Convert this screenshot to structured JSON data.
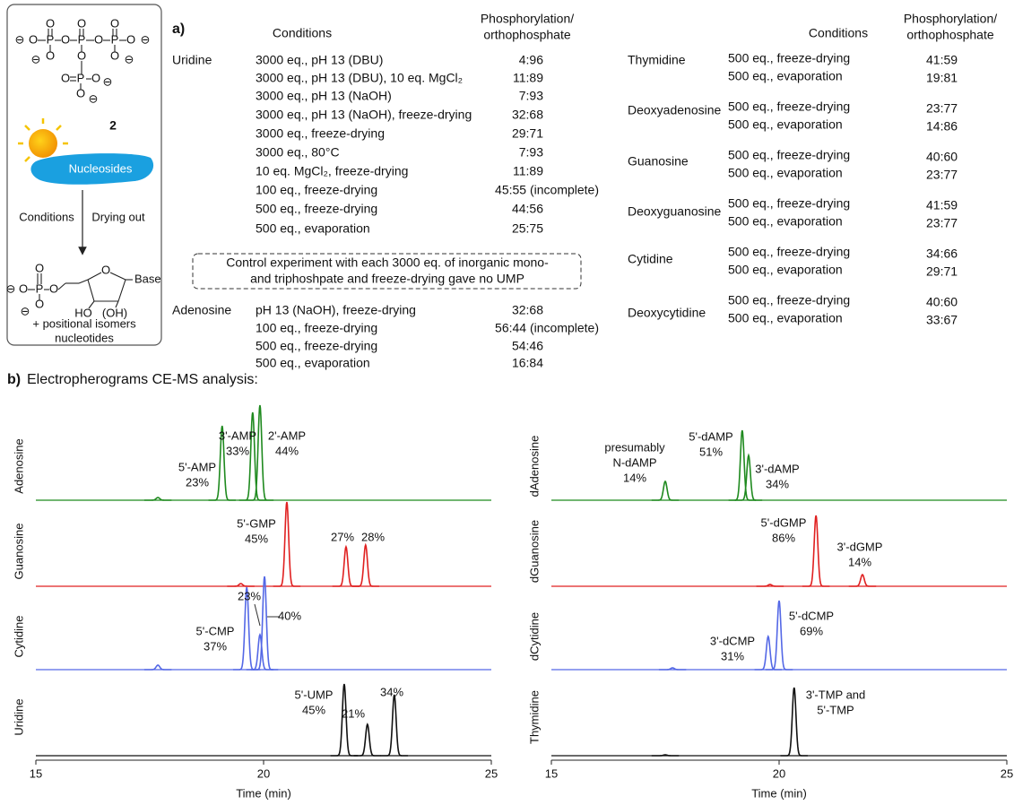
{
  "scheme": {
    "reagent_label": "2",
    "sun_label": "Nucleosides",
    "arrow_left": "Conditions",
    "arrow_right": "Drying out",
    "atoms": [
      "O",
      "P",
      "⊖"
    ],
    "product_labels": [
      "Base",
      "HO",
      "(OH)"
    ],
    "product_caption": [
      "+ positional isomers",
      "nucleotides"
    ]
  },
  "table_a": {
    "label": "a)",
    "header": {
      "conditions": "Conditions",
      "ratio": [
        "Phosphorylation/",
        "orthophosphate"
      ]
    },
    "groups": [
      {
        "nucleoside": "Uridine",
        "rows": [
          [
            "3000 eq., pH 13 (DBU)",
            "4:96"
          ],
          [
            "3000 eq., pH 13 (DBU), 10 eq. MgCl₂",
            "11:89"
          ],
          [
            "3000 eq., pH 13 (NaOH)",
            "7:93"
          ],
          [
            "3000 eq., pH 13 (NaOH), freeze-drying",
            "32:68"
          ],
          [
            "3000 eq., freeze-drying",
            "29:71"
          ],
          [
            "3000 eq., 80°C",
            "7:93"
          ],
          [
            "10 eq. MgCl₂, freeze-drying",
            "11:89"
          ],
          [
            "100 eq., freeze-drying",
            "45:55 (incomplete)"
          ],
          [
            "500 eq., freeze-drying",
            "44:56"
          ],
          [
            "500 eq., evaporation",
            "25:75"
          ]
        ]
      },
      {
        "nucleoside": "Adenosine",
        "rows": [
          [
            "pH 13 (NaOH), freeze-drying",
            "32:68"
          ],
          [
            "100 eq., freeze-drying",
            "56:44 (incomplete)"
          ],
          [
            "500 eq., freeze-drying",
            "54:46"
          ],
          [
            "500 eq., evaporation",
            "16:84"
          ]
        ]
      }
    ],
    "note": [
      "Control experiment with each 3000 eq. of inorganic mono-",
      "and triphoshpate and freeze-drying gave no UMP"
    ]
  },
  "table_right": {
    "header": {
      "conditions": "Conditions",
      "ratio": [
        "Phosphorylation/",
        "orthophosphate"
      ]
    },
    "groups": [
      {
        "nucleoside": "Thymidine",
        "rows": [
          [
            "500 eq., freeze-drying",
            "41:59"
          ],
          [
            "500 eq., evaporation",
            "19:81"
          ]
        ]
      },
      {
        "nucleoside": "Deoxyadenosine",
        "rows": [
          [
            "500 eq., freeze-drying",
            "23:77"
          ],
          [
            "500 eq., evaporation",
            "14:86"
          ]
        ]
      },
      {
        "nucleoside": "Guanosine",
        "rows": [
          [
            "500 eq., freeze-drying",
            "40:60"
          ],
          [
            "500 eq., evaporation",
            "23:77"
          ]
        ]
      },
      {
        "nucleoside": "Deoxyguanosine",
        "rows": [
          [
            "500 eq., freeze-drying",
            "41:59"
          ],
          [
            "500 eq., evaporation",
            "23:77"
          ]
        ]
      },
      {
        "nucleoside": "Cytidine",
        "rows": [
          [
            "500 eq., freeze-drying",
            "34:66"
          ],
          [
            "500 eq., evaporation",
            "29:71"
          ]
        ]
      },
      {
        "nucleoside": "Deoxycytidine",
        "rows": [
          [
            "500 eq., freeze-drying",
            "40:60"
          ],
          [
            "500 eq., evaporation",
            "33:67"
          ]
        ]
      }
    ]
  },
  "part_b": {
    "label": "b)",
    "title": "Electropherograms CE-MS analysis:"
  },
  "electropherograms": [
    {
      "xlim": [
        15,
        25
      ],
      "xticks": [
        15,
        20,
        25
      ],
      "xlabel": "Time (min)",
      "traces": [
        {
          "name": "Adenosine",
          "color": "#1f8a1f",
          "peaks": [
            {
              "time": 17.68,
              "intensity": 3
            },
            {
              "time": 19.09,
              "intensity": 83
            },
            {
              "time": 19.76,
              "intensity": 98
            },
            {
              "time": 19.92,
              "intensity": 106
            }
          ],
          "labels": [
            [
              "5'-AMP",
              "23%"
            ],
            [
              "3'-AMP",
              "33%"
            ],
            [
              "2'-AMP",
              "44%"
            ]
          ]
        },
        {
          "name": "Guanosine",
          "color": "#e02020",
          "peaks": [
            {
              "time": 19.5,
              "intensity": 3
            },
            {
              "time": 20.51,
              "intensity": 94
            },
            {
              "time": 21.81,
              "intensity": 44
            },
            {
              "time": 22.24,
              "intensity": 46
            }
          ],
          "labels": [
            [
              "5'-GMP",
              "45%"
            ],
            [
              "27%"
            ],
            [
              "28%"
            ]
          ]
        },
        {
          "name": "Cytidine",
          "color": "#5468e6",
          "peaks": [
            {
              "time": 17.68,
              "intensity": 5
            },
            {
              "time": 19.63,
              "intensity": 92
            },
            {
              "time": 19.92,
              "intensity": 39
            },
            {
              "time": 20.02,
              "intensity": 104
            }
          ],
          "labels": [
            [
              "23%"
            ],
            [
              "40%"
            ],
            [
              "5'-CMP",
              "37%"
            ]
          ]
        },
        {
          "name": "Uridine",
          "color": "#111111",
          "peaks": [
            {
              "time": 21.77,
              "intensity": 80
            },
            {
              "time": 22.28,
              "intensity": 35
            },
            {
              "time": 22.87,
              "intensity": 68
            }
          ],
          "labels": [
            [
              "5'-UMP",
              "45%"
            ],
            [
              "21%"
            ],
            [
              "34%"
            ]
          ]
        }
      ]
    },
    {
      "xlim": [
        15,
        25
      ],
      "xticks": [
        15,
        20,
        25
      ],
      "xlabel": "Time (min)",
      "traces": [
        {
          "name": "dAdenosine",
          "color": "#1f8a1f",
          "peaks": [
            {
              "time": 17.5,
              "intensity": 21
            },
            {
              "time": 19.19,
              "intensity": 78
            },
            {
              "time": 19.33,
              "intensity": 50
            }
          ],
          "labels": [
            [
              "presumably",
              "N-dAMP",
              "14%"
            ],
            [
              "5'-dAMP",
              "51%"
            ],
            [
              "3'-dAMP",
              "34%"
            ]
          ]
        },
        {
          "name": "dGuanosine",
          "color": "#e02020",
          "peaks": [
            {
              "time": 19.8,
              "intensity": 2
            },
            {
              "time": 20.81,
              "intensity": 79
            },
            {
              "time": 21.83,
              "intensity": 13
            }
          ],
          "labels": [
            [
              "5'-dGMP",
              "86%"
            ],
            [
              "3'-dGMP",
              "14%"
            ]
          ]
        },
        {
          "name": "dCytidine",
          "color": "#5468e6",
          "peaks": [
            {
              "time": 17.66,
              "intensity": 2
            },
            {
              "time": 19.76,
              "intensity": 37
            },
            {
              "time": 20.0,
              "intensity": 77
            }
          ],
          "labels": [
            [
              "5'-dCMP",
              "69%"
            ],
            [
              "3'-dCMP",
              "31%"
            ]
          ]
        },
        {
          "name": "Thymidine",
          "color": "#111111",
          "peaks": [
            {
              "time": 17.5,
              "intensity": 1
            },
            {
              "time": 20.33,
              "intensity": 76
            }
          ],
          "labels": [
            [
              "3'-TMP and",
              "5'-TMP"
            ]
          ]
        }
      ]
    }
  ]
}
